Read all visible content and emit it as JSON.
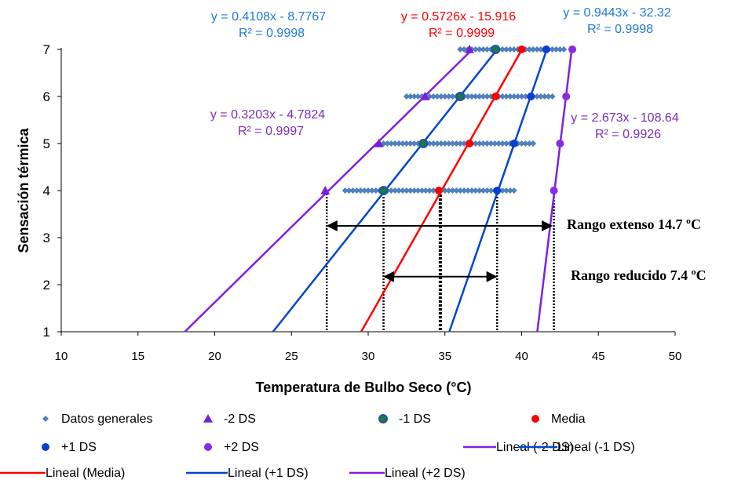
{
  "chart_data": {
    "type": "scatter",
    "xlabel": "Temperatura de Bulbo Seco (°C)",
    "ylabel": "Sensación térmica",
    "xlim": [
      10,
      50
    ],
    "ylim": [
      1,
      7
    ],
    "x_ticks": [
      "10",
      "15",
      "20",
      "25",
      "30",
      "35",
      "40",
      "45",
      "50"
    ],
    "y_ticks": [
      "1",
      "2",
      "3",
      "4",
      "5",
      "6",
      "7"
    ],
    "grid": false,
    "legend_position": "bottom",
    "colors": {
      "datos": "#4f81bd",
      "m2ds": "#7a1fd8",
      "m1ds_fill": "#1e7a3a",
      "m1ds_edge": "#1f4fb8",
      "media": "#ff0000",
      "p1ds": "#0b3fd0",
      "p2ds": "#8a2be2",
      "line_m2ds": "#7f1fe6",
      "line_m1ds": "#0047c8",
      "line_media": "#ff0000",
      "line_p1ds": "#0047c8",
      "line_p2ds": "#7f1fe6",
      "eq_blue": "#1f7ad6",
      "eq_red": "#ff0000",
      "eq_purple": "#7a2fb8"
    },
    "series": [
      {
        "name": "Datos generales",
        "kind": "diamond",
        "color_key": "datos",
        "ranges": [
          {
            "y": 4,
            "from": 28.5,
            "to": 39.5
          },
          {
            "y": 5,
            "from": 31.0,
            "to": 40.8
          },
          {
            "y": 6,
            "from": 32.5,
            "to": 42.0
          },
          {
            "y": 7,
            "from": 36.0,
            "to": 42.8
          }
        ]
      },
      {
        "name": "-2 DS",
        "kind": "triangle",
        "color_key": "m2ds",
        "points": [
          [
            27.2,
            4
          ],
          [
            30.7,
            5
          ],
          [
            33.7,
            6
          ],
          [
            36.6,
            7
          ]
        ]
      },
      {
        "name": "-1 DS",
        "kind": "circle",
        "color_key": "m1ds_fill",
        "points": [
          [
            31.0,
            4
          ],
          [
            33.6,
            5
          ],
          [
            36.0,
            6
          ],
          [
            38.3,
            7
          ]
        ]
      },
      {
        "name": "Media",
        "kind": "circle",
        "color_key": "media",
        "points": [
          [
            34.6,
            4
          ],
          [
            36.6,
            5
          ],
          [
            38.3,
            6
          ],
          [
            40.0,
            7
          ]
        ]
      },
      {
        "name": "+1 DS",
        "kind": "circle",
        "color_key": "p1ds",
        "points": [
          [
            38.4,
            4
          ],
          [
            39.5,
            5
          ],
          [
            40.6,
            6
          ],
          [
            41.6,
            7
          ]
        ]
      },
      {
        "name": "+2 DS",
        "kind": "circle",
        "color_key": "p2ds",
        "points": [
          [
            42.1,
            4
          ],
          [
            42.5,
            5
          ],
          [
            42.9,
            6
          ],
          [
            43.3,
            7
          ]
        ]
      }
    ],
    "trendlines": [
      {
        "name": "Lineal (-2 DS)",
        "color_key": "line_m2ds",
        "slope": 0.3203,
        "intercept": -4.7824
      },
      {
        "name": "Lineal (-1 DS)",
        "color_key": "line_m1ds",
        "slope": 0.4108,
        "intercept": -8.7767
      },
      {
        "name": "Lineal (Media)",
        "color_key": "line_media",
        "slope": 0.5726,
        "intercept": -15.916
      },
      {
        "name": "Lineal (+1 DS)",
        "color_key": "line_p1ds",
        "slope": 0.9443,
        "intercept": -32.32
      },
      {
        "name": "Lineal (+2 DS)",
        "color_key": "line_p2ds",
        "slope": 2.673,
        "intercept": -108.64
      }
    ],
    "equations": [
      {
        "eq": "y = 0.4108x - 8.7767",
        "r2": "R² = 0.9998",
        "color_key": "eq_blue"
      },
      {
        "eq": "y = 0.5726x - 15.916",
        "r2": "R² = 0.9999",
        "color_key": "eq_red"
      },
      {
        "eq": "y = 0.9443x - 32.32",
        "r2": "R² = 0.9998",
        "color_key": "eq_blue"
      },
      {
        "eq": "y = 0.3203x - 4.7824",
        "r2": "R² = 0.9997",
        "color_key": "eq_purple"
      },
      {
        "eq": "y = 2.673x - 108.64",
        "r2": "R² = 0.9926",
        "color_key": "eq_purple"
      }
    ],
    "vertical_guides": [
      {
        "x": 27.3,
        "to_y": 4,
        "heavy": false
      },
      {
        "x": 31.0,
        "to_y": 4,
        "heavy": false
      },
      {
        "x": 34.7,
        "to_y": 4,
        "heavy": true
      },
      {
        "x": 38.4,
        "to_y": 4,
        "heavy": false
      },
      {
        "x": 42.1,
        "to_y": 4,
        "heavy": false
      }
    ],
    "ranges": [
      {
        "label": "Rango extenso 14.7 ºC",
        "x1": 27.3,
        "x2": 42.0,
        "y": 3.25
      },
      {
        "label": "Rango reducido 7.4 ºC",
        "x1": 31.0,
        "x2": 38.4,
        "y": 2.17
      }
    ],
    "legend": [
      {
        "label": "Datos generales",
        "marker": "diamond",
        "color_key": "datos"
      },
      {
        "label": "-2 DS",
        "marker": "triangle",
        "color_key": "m2ds"
      },
      {
        "label": "-1 DS",
        "marker": "circle-green",
        "color_key": "m1ds_fill"
      },
      {
        "label": "Media",
        "marker": "circle",
        "color_key": "media"
      },
      {
        "label": "+1 DS",
        "marker": "circle",
        "color_key": "p1ds"
      },
      {
        "label": "+2 DS",
        "marker": "circle",
        "color_key": "p2ds"
      },
      {
        "label": "Lineal (-2 DS)",
        "marker": "line",
        "color_key": "line_m2ds"
      },
      {
        "label": "Lineal (-1 DS)",
        "marker": "line",
        "color_key": "line_m1ds"
      },
      {
        "label": "Lineal (Media)",
        "marker": "line",
        "color_key": "line_media"
      },
      {
        "label": "Lineal (+1 DS)",
        "marker": "line",
        "color_key": "line_p1ds"
      },
      {
        "label": "Lineal (+2 DS)",
        "marker": "line",
        "color_key": "line_p2ds"
      }
    ]
  }
}
